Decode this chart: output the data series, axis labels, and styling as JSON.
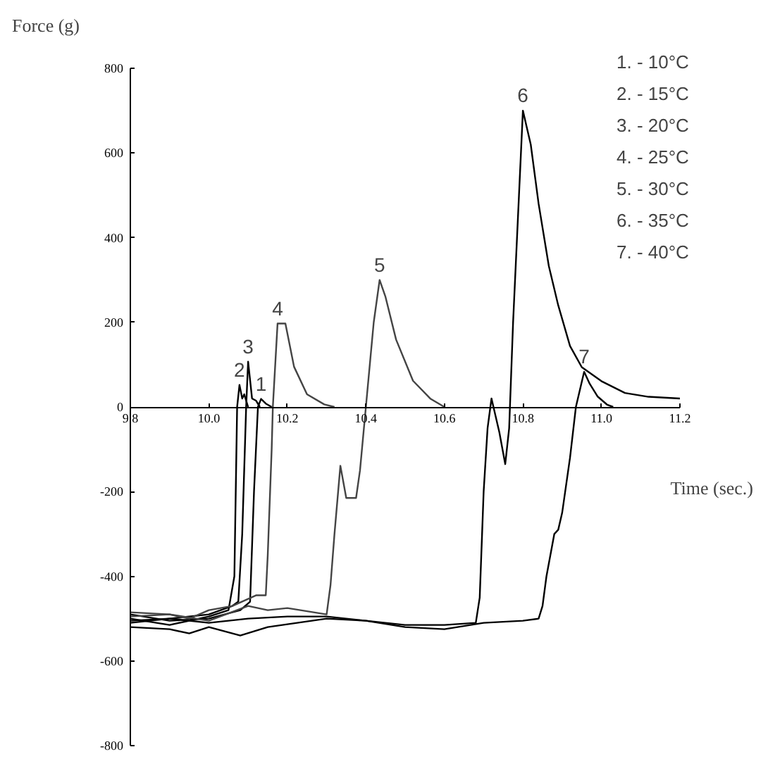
{
  "chart_data": {
    "type": "line",
    "xlabel": "Time (sec.)",
    "ylabel": "Force   (g)",
    "annotations": [
      "1. - 10°C",
      "2. - 15°C",
      "3. - 20°C",
      "4. - 25°C",
      "5. - 30°C",
      "6. - 35°C",
      "7. - 40°C"
    ],
    "xlim": [
      9.8,
      11.2
    ],
    "ylim": [
      -800,
      800
    ],
    "xticks": [
      9.8,
      {
        "value": 10.0,
        "label": "10.0"
      },
      10.2,
      10.4,
      10.6,
      10.8,
      {
        "value": 11.0,
        "label": "11.0"
      },
      11.2
    ],
    "yticks": [
      -800,
      -600,
      -400,
      -200,
      0,
      200,
      400,
      600,
      800
    ],
    "series": [
      {
        "name": "1",
        "color": "#000000",
        "x": [
          9.8,
          9.9,
          10.0,
          10.08,
          10.105,
          10.115,
          10.125,
          10.133,
          10.145,
          10.16
        ],
        "values": [
          -490,
          -505,
          -500,
          -480,
          -460,
          -200,
          0,
          19,
          8,
          0
        ]
      },
      {
        "name": "2",
        "color": "#000000",
        "x": [
          9.8,
          9.9,
          10.0,
          10.05,
          10.065,
          10.072,
          10.078,
          10.085,
          10.09,
          10.1
        ],
        "values": [
          -500,
          -515,
          -495,
          -480,
          -400,
          0,
          52,
          20,
          30,
          0
        ]
      },
      {
        "name": "3",
        "color": "#000000",
        "x": [
          9.8,
          9.9,
          10.0,
          10.06,
          10.075,
          10.085,
          10.095,
          10.1,
          10.11,
          10.12,
          10.13
        ],
        "values": [
          -510,
          -500,
          -490,
          -470,
          -460,
          -300,
          0,
          107,
          20,
          15,
          0
        ]
      },
      {
        "name": "4",
        "color": "#444444",
        "x": [
          9.8,
          9.9,
          9.95,
          10.0,
          10.06,
          10.12,
          10.145,
          10.15,
          10.16,
          10.163,
          10.175,
          10.195,
          10.217,
          10.25,
          10.294,
          10.32
        ],
        "values": [
          -485,
          -490,
          -500,
          -480,
          -470,
          -445,
          -445,
          -350,
          -100,
          0,
          197,
          197,
          95,
          30,
          6,
          0
        ]
      },
      {
        "name": "5",
        "color": "#444444",
        "x": [
          9.8,
          9.9,
          10.0,
          10.1,
          10.15,
          10.2,
          10.3,
          10.31,
          10.32,
          10.335,
          10.35,
          10.375,
          10.385,
          10.4,
          10.42,
          10.435,
          10.45,
          10.477,
          10.52,
          10.565,
          10.6
        ],
        "values": [
          -495,
          -490,
          -505,
          -470,
          -480,
          -475,
          -490,
          -420,
          -300,
          -139,
          -215,
          -215,
          -150,
          0,
          200,
          300,
          260,
          159,
          62,
          19,
          0
        ]
      },
      {
        "name": "6",
        "color": "#000000",
        "x": [
          9.8,
          9.9,
          10.0,
          10.1,
          10.2,
          10.3,
          10.4,
          10.5,
          10.6,
          10.68,
          10.69,
          10.7,
          10.71,
          10.72,
          10.74,
          10.755,
          10.765,
          10.775,
          10.79,
          10.8,
          10.82,
          10.84,
          10.866,
          10.89,
          10.92,
          10.95,
          11.0,
          11.06,
          11.12,
          11.2
        ],
        "values": [
          -505,
          -500,
          -510,
          -500,
          -495,
          -495,
          -505,
          -515,
          -515,
          -510,
          -450,
          -200,
          -50,
          20,
          -60,
          -135,
          -50,
          200,
          500,
          700,
          620,
          480,
          333,
          240,
          144,
          94,
          61,
          33,
          24,
          20
        ]
      },
      {
        "name": "7",
        "color": "#000000",
        "x": [
          9.8,
          9.9,
          9.95,
          10.0,
          10.08,
          10.15,
          10.3,
          10.4,
          10.5,
          10.6,
          10.7,
          10.8,
          10.84,
          10.85,
          10.86,
          10.88,
          10.89,
          10.9,
          10.92,
          10.935,
          10.956,
          10.97,
          10.99,
          11.015,
          11.03
        ],
        "values": [
          -520,
          -525,
          -535,
          -520,
          -540,
          -520,
          -500,
          -505,
          -520,
          -525,
          -510,
          -505,
          -500,
          -470,
          -400,
          -300,
          -290,
          -250,
          -120,
          0,
          83,
          55,
          25,
          5,
          0
        ]
      }
    ]
  }
}
